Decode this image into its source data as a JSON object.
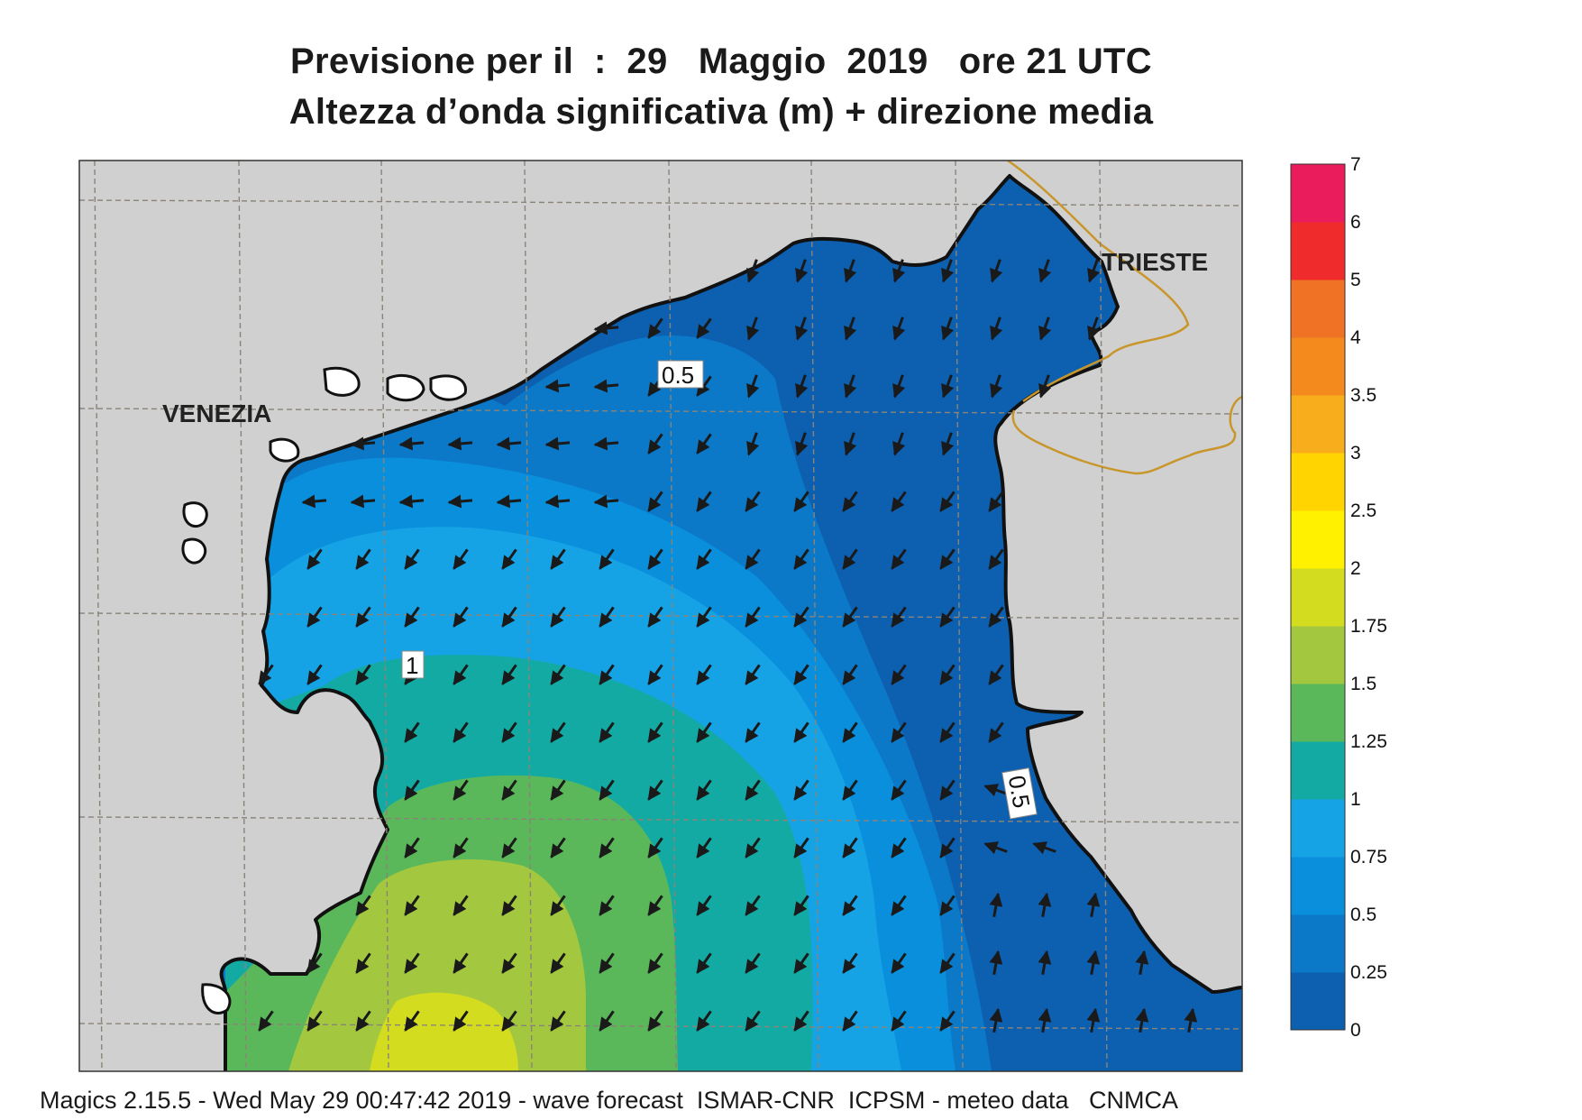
{
  "header": {
    "title_line1": "Previsione per il  :  29   Maggio  2019   ore 21 UTC",
    "title_line2": "Altezza d’onda significativa (m) + direzione media"
  },
  "map": {
    "variable": "significant wave height (m) + mean direction",
    "cities": [
      "VENEZIA",
      "TRIESTE"
    ],
    "contour_labels": [
      "0.5",
      "1",
      "0.5"
    ],
    "colors": {
      "land": "#d0d0d0",
      "coast": "#111111",
      "border": "#c8962a",
      "grid": "#8a8478"
    }
  },
  "colorbar": {
    "levels": [
      "0",
      "0.25",
      "0.5",
      "0.75",
      "1",
      "1.25",
      "1.5",
      "1.75",
      "2",
      "2.5",
      "3",
      "3.5",
      "4",
      "5",
      "6",
      "7"
    ],
    "colors": [
      "#0d5fb0",
      "#0b79c8",
      "#0a8fdc",
      "#16a3e6",
      "#14aaa4",
      "#5bb85a",
      "#a3c83f",
      "#d4dc20",
      "#fff100",
      "#ffd400",
      "#f8ad1c",
      "#f48a1e",
      "#f07224",
      "#ef2b2b",
      "#eb1c5c"
    ]
  },
  "footer": {
    "text": "Magics 2.15.5 - Wed May 29 00:47:42 2019 - wave forecast  ISMAR-CNR  ICPSM - meteo data   CNMCA"
  }
}
